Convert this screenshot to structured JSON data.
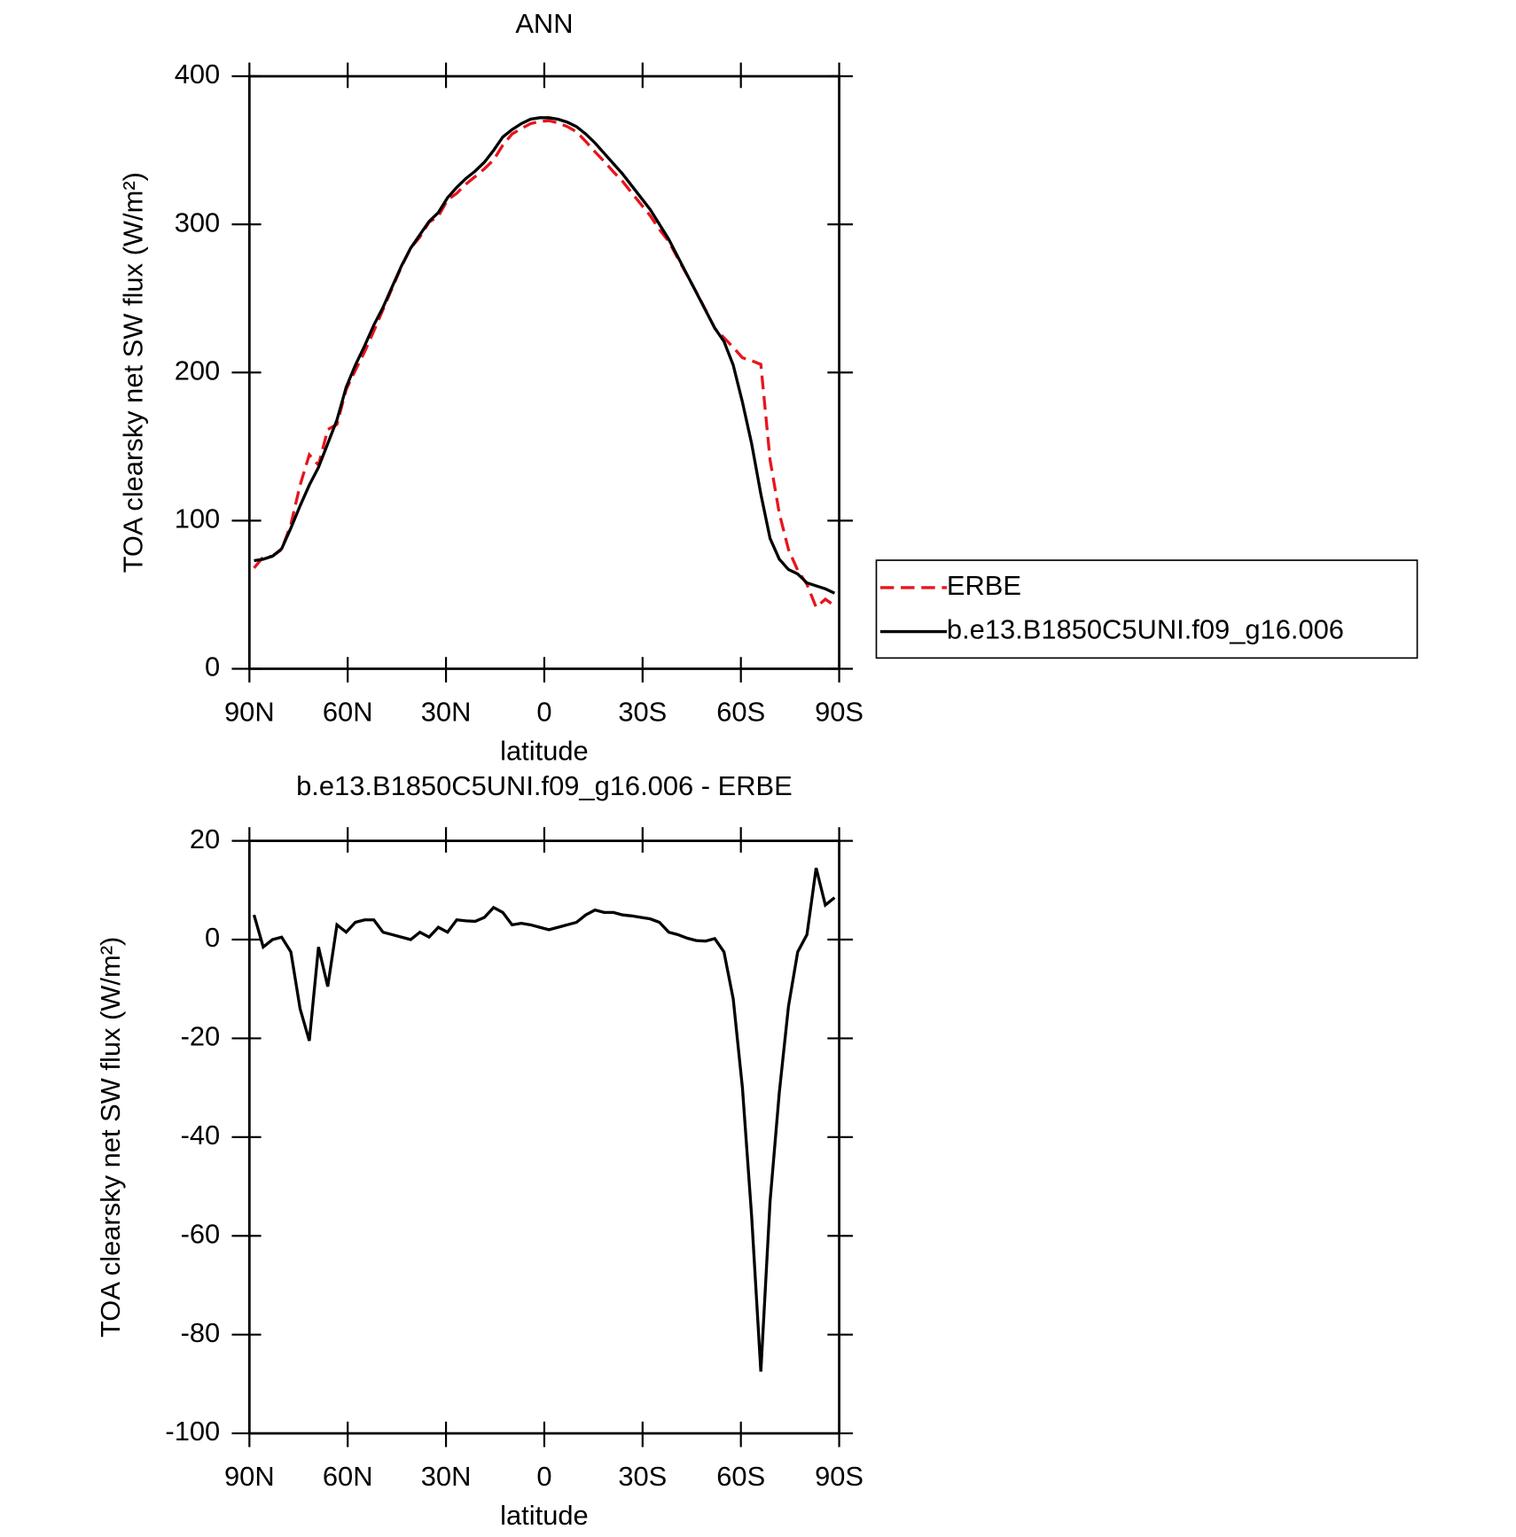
{
  "chart_data": [
    {
      "type": "line",
      "title": "ANN",
      "xlabel": "latitude",
      "ylabel": "TOA clearsky net SW flux (W/m²)",
      "x": [
        88.59,
        85.78,
        82.97,
        80.16,
        77.34,
        74.53,
        71.72,
        68.91,
        66.09,
        63.28,
        60.47,
        57.66,
        54.84,
        52.03,
        49.22,
        46.41,
        43.59,
        40.78,
        37.97,
        35.16,
        32.34,
        29.53,
        26.72,
        23.91,
        21.09,
        18.28,
        15.47,
        12.66,
        9.84,
        7.03,
        4.22,
        1.41,
        -1.41,
        -4.22,
        -7.03,
        -9.84,
        -12.66,
        -15.47,
        -18.28,
        -21.09,
        -23.91,
        -26.72,
        -29.53,
        -32.34,
        -35.16,
        -37.97,
        -40.78,
        -43.59,
        -46.41,
        -49.22,
        -52.03,
        -54.84,
        -57.66,
        -60.47,
        -63.28,
        -66.09,
        -68.91,
        -71.72,
        -74.53,
        -77.34,
        -80.16,
        -82.97,
        -85.78,
        -88.59
      ],
      "series": [
        {
          "name": "ERBE",
          "color": "#e8141c",
          "line_style": "dashed",
          "values": [
            68,
            75.5,
            76,
            80.5,
            97.5,
            124,
            144.5,
            137.5,
            161.5,
            165,
            188.5,
            201.5,
            214,
            228,
            242.5,
            257,
            271.5,
            284,
            291.5,
            301.5,
            305.5,
            316.5,
            321,
            327.2,
            332.3,
            337.5,
            343.5,
            353.5,
            361,
            364.7,
            368,
            369.5,
            370,
            368.5,
            366,
            362.5,
            356,
            349,
            342.5,
            335.5,
            329,
            321.2,
            313.5,
            305.8,
            296.5,
            288.5,
            277,
            265.7,
            254.2,
            242.3,
            229.8,
            223.5,
            217,
            210,
            208,
            205.5,
            141,
            105,
            80.5,
            66.5,
            57,
            41.5,
            47,
            42.5
          ]
        },
        {
          "name": "b.e13.B1850C5UNI.f09_g16.006",
          "color": "#000000",
          "line_style": "solid",
          "values": [
            73,
            74,
            76,
            81,
            95,
            110,
            124,
            136,
            152,
            168,
            190,
            205,
            218,
            232,
            244,
            258,
            272,
            284,
            293,
            302,
            308,
            318,
            325,
            331,
            336,
            342,
            350,
            359,
            364,
            368,
            371,
            372,
            372,
            371,
            369,
            366,
            361,
            355,
            348,
            341,
            334,
            326,
            318,
            310,
            300,
            290,
            278,
            266,
            254,
            242,
            230,
            221,
            205,
            180,
            152,
            118,
            88,
            74,
            67,
            64,
            58,
            56,
            54,
            51
          ]
        }
      ],
      "xlim": [
        90,
        -90
      ],
      "xticks": [
        {
          "value": 90,
          "label": "90N"
        },
        {
          "value": 60,
          "label": "60N"
        },
        {
          "value": 30,
          "label": "30N"
        },
        0,
        {
          "value": -30,
          "label": "30S"
        },
        {
          "value": -60,
          "label": "60S"
        },
        {
          "value": -90,
          "label": "90S"
        }
      ],
      "ylim": [
        0,
        400
      ],
      "yticks": [
        0,
        100,
        200,
        300,
        400
      ],
      "legend": "right"
    },
    {
      "type": "line",
      "title": "b.e13.B1850C5UNI.f09_g16.006 - ERBE",
      "xlabel": "latitude",
      "ylabel": "TOA clearsky net SW flux (W/m²)",
      "x": [
        88.59,
        85.78,
        82.97,
        80.16,
        77.34,
        74.53,
        71.72,
        68.91,
        66.09,
        63.28,
        60.47,
        57.66,
        54.84,
        52.03,
        49.22,
        46.41,
        43.59,
        40.78,
        37.97,
        35.16,
        32.34,
        29.53,
        26.72,
        23.91,
        21.09,
        18.28,
        15.47,
        12.66,
        9.84,
        7.03,
        4.22,
        1.41,
        -1.41,
        -4.22,
        -7.03,
        -9.84,
        -12.66,
        -15.47,
        -18.28,
        -21.09,
        -23.91,
        -26.72,
        -29.53,
        -32.34,
        -35.16,
        -37.97,
        -40.78,
        -43.59,
        -46.41,
        -49.22,
        -52.03,
        -54.84,
        -57.66,
        -60.47,
        -63.28,
        -66.09,
        -68.91,
        -71.72,
        -74.53,
        -77.34,
        -80.16,
        -82.97,
        -85.78,
        -88.59
      ],
      "color": "#000000",
      "values": [
        5,
        -1.5,
        0,
        0.5,
        -2.5,
        -14,
        -20.5,
        -1.5,
        -9.5,
        3,
        1.5,
        3.5,
        4,
        4,
        1.5,
        1,
        0.5,
        0,
        1.5,
        0.5,
        2.5,
        1.5,
        4,
        3.8,
        3.7,
        4.5,
        6.5,
        5.5,
        3,
        3.3,
        3,
        2.5,
        2,
        2.5,
        3,
        3.5,
        5,
        6,
        5.5,
        5.5,
        5,
        4.8,
        4.5,
        4.2,
        3.5,
        1.5,
        1,
        0.3,
        -0.2,
        -0.3,
        0.2,
        -2.5,
        -12,
        -30,
        -56,
        -87.5,
        -53,
        -31,
        -13.5,
        -2.5,
        1,
        14.5,
        7,
        8.5
      ],
      "xlim": [
        90,
        -90
      ],
      "xticks": [
        {
          "value": 90,
          "label": "90N"
        },
        {
          "value": 60,
          "label": "60N"
        },
        {
          "value": 30,
          "label": "30N"
        },
        0,
        {
          "value": -30,
          "label": "30S"
        },
        {
          "value": -60,
          "label": "60S"
        },
        {
          "value": -90,
          "label": "90S"
        }
      ],
      "ylim": [
        -100,
        20
      ],
      "yticks": [
        -100,
        -80,
        -60,
        -40,
        -20,
        0,
        20
      ]
    }
  ]
}
